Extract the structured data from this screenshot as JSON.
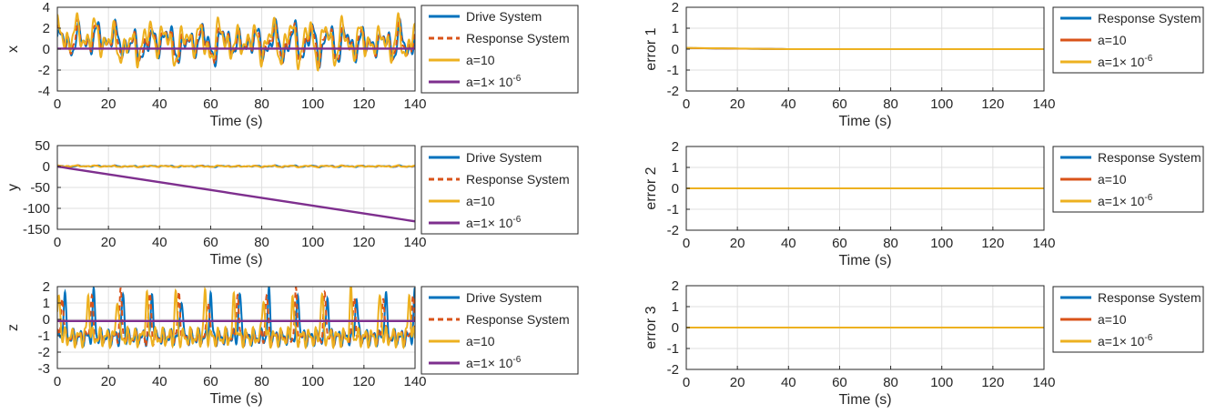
{
  "figure_description_colors": {
    "blue": "#0072BD",
    "orange": "#D95319",
    "yellow": "#EDB120",
    "purple": "#7E2F8E",
    "grid": "#DFDFDF",
    "axis": "#262626"
  },
  "chart_data": [
    {
      "id": "x",
      "type": "line",
      "ylabel": "x",
      "xlabel": "Time (s)",
      "xlim": [
        0,
        140
      ],
      "ylim": [
        -4,
        4
      ],
      "xticks": [
        0,
        20,
        40,
        60,
        80,
        100,
        120,
        140
      ],
      "yticks": [
        -4,
        -2,
        0,
        2,
        4
      ],
      "xtick_labels": [
        "0",
        "20",
        "40",
        "60",
        "80",
        "100",
        "120",
        "140"
      ],
      "ytick_labels": [
        "-4",
        "-2",
        "0",
        "2",
        "4"
      ],
      "grid": true,
      "legend_location": "outside-right",
      "series": [
        {
          "name": "Drive System",
          "label_main": "Drive System",
          "color": "#0072BD",
          "dash": "solid",
          "kind": "chaotic",
          "amp": 1.9,
          "offset": 0.6,
          "phase": 0.0
        },
        {
          "name": "Response System",
          "label_main": "Response System",
          "color": "#D95319",
          "dash": "dashed",
          "kind": "chaotic",
          "amp": 1.9,
          "offset": 0.6,
          "phase": 0.4
        },
        {
          "name": "a=10",
          "label_main": "a=10",
          "color": "#EDB120",
          "dash": "solid",
          "kind": "chaotic",
          "amp": 2.2,
          "offset": 0.7,
          "phase": 1.1
        },
        {
          "name": "a=1× 10^-6",
          "label_main": "a=1× 10",
          "label_exp": "-6",
          "color": "#7E2F8E",
          "dash": "solid",
          "kind": "linear",
          "start": 0.05,
          "end": 0.05
        }
      ]
    },
    {
      "id": "y",
      "type": "line",
      "ylabel": "y",
      "xlabel": "Time (s)",
      "xlim": [
        0,
        140
      ],
      "ylim": [
        -150,
        50
      ],
      "xticks": [
        0,
        20,
        40,
        60,
        80,
        100,
        120,
        140
      ],
      "yticks": [
        -150,
        -100,
        -50,
        0,
        50
      ],
      "xtick_labels": [
        "0",
        "20",
        "40",
        "60",
        "80",
        "100",
        "120",
        "140"
      ],
      "ytick_labels": [
        "-150",
        "-100",
        "-50",
        "0",
        "50"
      ],
      "grid": true,
      "legend_location": "outside-right",
      "series": [
        {
          "name": "Drive System",
          "label_main": "Drive System",
          "color": "#0072BD",
          "dash": "solid",
          "kind": "chaotic",
          "amp": 2.0,
          "offset": 0.5,
          "phase": 0.2
        },
        {
          "name": "Response System",
          "label_main": "Response System",
          "color": "#D95319",
          "dash": "dashed",
          "kind": "chaotic",
          "amp": 2.0,
          "offset": 0.5,
          "phase": 0.7
        },
        {
          "name": "a=10",
          "label_main": "a=10",
          "color": "#EDB120",
          "dash": "solid",
          "kind": "chaotic",
          "amp": 2.0,
          "offset": 0.5,
          "phase": 1.3
        },
        {
          "name": "a=1× 10^-6",
          "label_main": "a=1× 10",
          "label_exp": "-6",
          "color": "#7E2F8E",
          "dash": "solid",
          "kind": "linear",
          "start": 0,
          "end": -131
        }
      ]
    },
    {
      "id": "z",
      "type": "line",
      "ylabel": "z",
      "xlabel": "Time (s)",
      "xlim": [
        0,
        140
      ],
      "ylim": [
        -3,
        2
      ],
      "xticks": [
        0,
        20,
        40,
        60,
        80,
        100,
        120,
        140
      ],
      "yticks": [
        -3,
        -2,
        -1,
        0,
        1,
        2
      ],
      "xtick_labels": [
        "0",
        "20",
        "40",
        "60",
        "80",
        "100",
        "120",
        "140"
      ],
      "ytick_labels": [
        "-3",
        "-2",
        "-1",
        "0",
        "1",
        "2"
      ],
      "grid": true,
      "legend_location": "outside-right",
      "series": [
        {
          "name": "Drive System",
          "label_main": "Drive System",
          "color": "#0072BD",
          "dash": "solid",
          "kind": "spiky",
          "base": -1.1,
          "amp": 0.6,
          "phase": 0.0
        },
        {
          "name": "Response System",
          "label_main": "Response System",
          "color": "#D95319",
          "dash": "dashed",
          "kind": "spiky",
          "base": -1.1,
          "amp": 0.6,
          "phase": 0.5
        },
        {
          "name": "a=10",
          "label_main": "a=10",
          "color": "#EDB120",
          "dash": "solid",
          "kind": "spiky",
          "base": -1.1,
          "amp": 0.7,
          "phase": 1.2
        },
        {
          "name": "a=1× 10^-6",
          "label_main": "a=1× 10",
          "label_exp": "-6",
          "color": "#7E2F8E",
          "dash": "solid",
          "kind": "linear",
          "start": -0.1,
          "end": -0.1
        }
      ]
    },
    {
      "id": "error1",
      "type": "line",
      "ylabel": "error 1",
      "xlabel": "Time (s)",
      "xlim": [
        0,
        140
      ],
      "ylim": [
        -2,
        2
      ],
      "xticks": [
        0,
        20,
        40,
        60,
        80,
        100,
        120,
        140
      ],
      "yticks": [
        -2,
        -1,
        0,
        1,
        2
      ],
      "xtick_labels": [
        "0",
        "20",
        "40",
        "60",
        "80",
        "100",
        "120",
        "140"
      ],
      "ytick_labels": [
        "-2",
        "-1",
        "0",
        "1",
        "2"
      ],
      "grid": true,
      "legend_location": "outside-right",
      "series": [
        {
          "name": "Response System",
          "label_main": "Response System",
          "color": "#0072BD",
          "dash": "solid",
          "kind": "decay",
          "start": 0.05,
          "end": 0,
          "t_end": 40
        },
        {
          "name": "a=10",
          "label_main": "a=10",
          "color": "#D95319",
          "dash": "solid",
          "kind": "decay",
          "start": 0.05,
          "end": 0,
          "t_end": 40
        },
        {
          "name": "a=1× 10^-6",
          "label_main": "a=1× 10",
          "label_exp": "-6",
          "color": "#EDB120",
          "dash": "solid",
          "kind": "decay",
          "start": 0.06,
          "end": 0,
          "t_end": 40
        }
      ]
    },
    {
      "id": "error2",
      "type": "line",
      "ylabel": "error 2",
      "xlabel": "Time (s)",
      "xlim": [
        0,
        140
      ],
      "ylim": [
        -2,
        2
      ],
      "xticks": [
        0,
        20,
        40,
        60,
        80,
        100,
        120,
        140
      ],
      "yticks": [
        -2,
        -1,
        0,
        1,
        2
      ],
      "xtick_labels": [
        "0",
        "20",
        "40",
        "60",
        "80",
        "100",
        "120",
        "140"
      ],
      "ytick_labels": [
        "-2",
        "-1",
        "0",
        "1",
        "2"
      ],
      "grid": true,
      "legend_location": "outside-right",
      "series": [
        {
          "name": "Response System",
          "label_main": "Response System",
          "color": "#0072BD",
          "dash": "solid",
          "kind": "linear",
          "start": 0,
          "end": 0
        },
        {
          "name": "a=10",
          "label_main": "a=10",
          "color": "#D95319",
          "dash": "solid",
          "kind": "linear",
          "start": 0,
          "end": 0
        },
        {
          "name": "a=1× 10^-6",
          "label_main": "a=1× 10",
          "label_exp": "-6",
          "color": "#EDB120",
          "dash": "solid",
          "kind": "linear",
          "start": 0,
          "end": 0
        }
      ]
    },
    {
      "id": "error3",
      "type": "line",
      "ylabel": "error 3",
      "xlabel": "Time (s)",
      "xlim": [
        0,
        140
      ],
      "ylim": [
        -2,
        2
      ],
      "xticks": [
        0,
        20,
        40,
        60,
        80,
        100,
        120,
        140
      ],
      "yticks": [
        -2,
        -1,
        0,
        1,
        2
      ],
      "xtick_labels": [
        "0",
        "20",
        "40",
        "60",
        "80",
        "100",
        "120",
        "140"
      ],
      "ytick_labels": [
        "-2",
        "-1",
        "0",
        "1",
        "2"
      ],
      "grid": true,
      "legend_location": "outside-right",
      "series": [
        {
          "name": "Response System",
          "label_main": "Response System",
          "color": "#0072BD",
          "dash": "solid",
          "kind": "linear",
          "start": 0,
          "end": 0
        },
        {
          "name": "a=10",
          "label_main": "a=10",
          "color": "#D95319",
          "dash": "solid",
          "kind": "linear",
          "start": 0,
          "end": 0
        },
        {
          "name": "a=1× 10^-6",
          "label_main": "a=1× 10",
          "label_exp": "-6",
          "color": "#EDB120",
          "dash": "solid",
          "kind": "linear",
          "start": 0,
          "end": 0
        }
      ]
    }
  ]
}
